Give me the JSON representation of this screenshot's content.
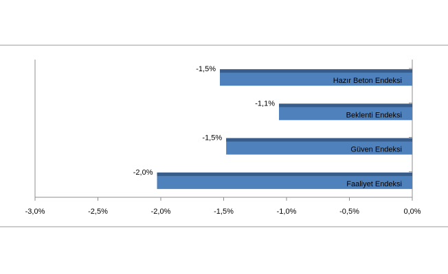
{
  "chart_data": {
    "type": "bar",
    "orientation": "horizontal",
    "title": "",
    "xlabel": "",
    "ylabel": "",
    "categories": [
      "Hazır Beton Endeksi",
      "Beklenti Endeksi",
      "Güven Endeksi",
      "Faaliyet Endeksi"
    ],
    "values": [
      -1.53,
      -1.06,
      -1.48,
      -2.03
    ],
    "data_labels": [
      "-1,5%",
      "-1,1%",
      "-1,5%",
      "-2,0%"
    ],
    "xlim": [
      -3.0,
      0.0
    ],
    "xticks": [
      -3.0,
      -2.5,
      -2.0,
      -1.5,
      -1.0,
      -0.5,
      0.0
    ],
    "xtick_labels": [
      "-3,0%",
      "-2,5%",
      "-2,0%",
      "-1,5%",
      "-1,0%",
      "-0,5%",
      "0,0%"
    ],
    "grid": false,
    "legend": false,
    "bar_color": "#4f81bd",
    "bar_top_color": "#385d8a"
  }
}
